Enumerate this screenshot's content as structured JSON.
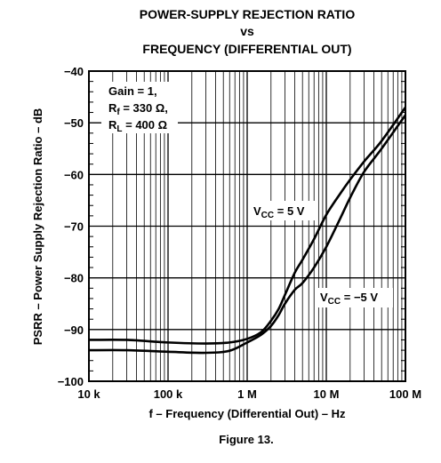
{
  "chart_data": {
    "type": "line",
    "title_lines": [
      "POWER-SUPPLY REJECTION RATIO",
      "vs",
      "FREQUENCY (DIFFERENTIAL OUT)"
    ],
    "xlabel": "f – Frequency (Differential Out) – Hz",
    "ylabel": "PSRR – Power Supply Rejection Ratio – dB",
    "xscale": "log",
    "xlim": [
      10000,
      100000000
    ],
    "ylim": [
      -100,
      -40
    ],
    "grid": true,
    "x_tick_values": [
      10000,
      100000,
      1000000,
      10000000,
      100000000
    ],
    "x_tick_labels": [
      "10 k",
      "100 k",
      "1 M",
      "10 M",
      "100 M"
    ],
    "y_tick_values": [
      -40,
      -50,
      -60,
      -70,
      -80,
      -90,
      -100
    ],
    "y_tick_labels": [
      "−40",
      "−50",
      "−60",
      "−70",
      "−80",
      "−90",
      "−100"
    ],
    "annotation": {
      "line1": "Gain = 1,",
      "line2_main": "R",
      "line2_sub": "f",
      "line2_rest": " = 330 Ω,",
      "line3_main": "R",
      "line3_sub": "L",
      "line3_rest": " = 400 Ω"
    },
    "series": [
      {
        "name": "V_CC = 5 V",
        "label_main": "V",
        "label_sub": "CC",
        "label_rest": " = 5 V",
        "x": [
          10000,
          30000,
          100000,
          300000,
          600000,
          1000000,
          1500000,
          2000000,
          2500000,
          3000000,
          4000000,
          5000000,
          7000000,
          10000000,
          15000000,
          20000000,
          30000000,
          50000000,
          100000000
        ],
        "values": [
          -92,
          -92,
          -92.5,
          -92.7,
          -92.5,
          -91.8,
          -90.5,
          -88.3,
          -86,
          -83.3,
          -79,
          -76.5,
          -72.5,
          -67.8,
          -63.7,
          -61,
          -57.5,
          -53.5,
          -47
        ]
      },
      {
        "name": "V_CC = −5 V",
        "label_main": "V",
        "label_sub": "CC",
        "label_rest": " = −5 V",
        "x": [
          10000,
          30000,
          100000,
          300000,
          600000,
          1000000,
          1500000,
          2000000,
          2500000,
          3000000,
          4000000,
          5000000,
          7000000,
          10000000,
          15000000,
          20000000,
          30000000,
          50000000,
          100000000
        ],
        "values": [
          -94,
          -94,
          -94.3,
          -94.5,
          -94.1,
          -92.5,
          -91,
          -89.3,
          -87.2,
          -85,
          -82.3,
          -81,
          -78,
          -74,
          -68.5,
          -64.5,
          -59.5,
          -55,
          -48.5
        ]
      }
    ]
  },
  "figure_caption": "Figure 13."
}
